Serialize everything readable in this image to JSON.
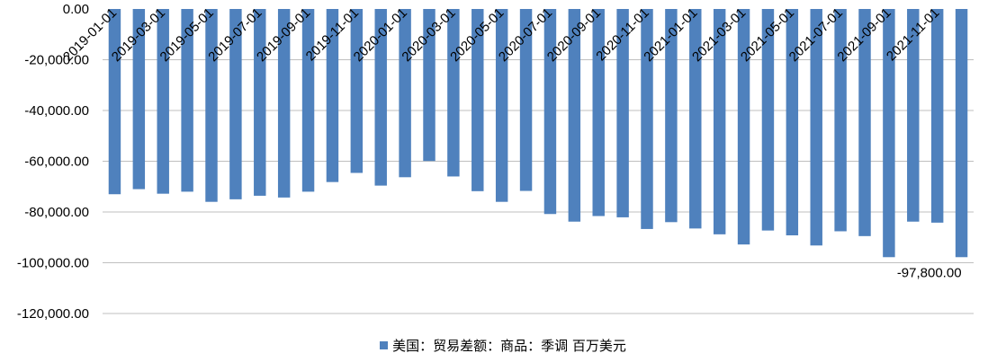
{
  "chart_data": {
    "type": "bar",
    "title": "",
    "xlabel": "",
    "ylabel": "",
    "ylim": [
      -120000,
      0
    ],
    "y_ticks": [
      0,
      -20000,
      -40000,
      -60000,
      -80000,
      -100000,
      -120000
    ],
    "y_tick_labels": [
      "0.00",
      "-20,000.00",
      "-40,000.00",
      "-60,000.00",
      "-80,000.00",
      "-100,000.00",
      "-120,000.00"
    ],
    "grid": true,
    "legend_position": "bottom",
    "color": "#4f81bd",
    "categories": [
      "2019-01-01",
      "2019-02-01",
      "2019-03-01",
      "2019-04-01",
      "2019-05-01",
      "2019-06-01",
      "2019-07-01",
      "2019-08-01",
      "2019-09-01",
      "2019-10-01",
      "2019-11-01",
      "2019-12-01",
      "2020-01-01",
      "2020-02-01",
      "2020-03-01",
      "2020-04-01",
      "2020-05-01",
      "2020-06-01",
      "2020-07-01",
      "2020-08-01",
      "2020-09-01",
      "2020-10-01",
      "2020-11-01",
      "2020-12-01",
      "2021-01-01",
      "2021-02-01",
      "2021-03-01",
      "2021-04-01",
      "2021-05-01",
      "2021-06-01",
      "2021-07-01",
      "2021-08-01",
      "2021-09-01",
      "2021-10-01",
      "2021-11-01",
      "2021-12-01"
    ],
    "x_tick_labels": [
      "2019-01-01",
      "2019-03-01",
      "2019-05-01",
      "2019-07-01",
      "2019-09-01",
      "2019-11-01",
      "2020-01-01",
      "2020-03-01",
      "2020-05-01",
      "2020-07-01",
      "2020-09-01",
      "2020-11-01",
      "2021-01-01",
      "2021-03-01",
      "2021-05-01",
      "2021-07-01",
      "2021-09-01",
      "2021-11-01"
    ],
    "series": [
      {
        "name": "美国：贸易差额：商品：季调 百万美元",
        "values": [
          -73000,
          -71000,
          -72800,
          -72000,
          -76000,
          -75000,
          -73600,
          -74300,
          -72000,
          -68200,
          -64600,
          -69600,
          -66300,
          -59900,
          -66000,
          -71800,
          -76000,
          -71700,
          -80800,
          -83800,
          -81600,
          -82100,
          -86700,
          -84000,
          -86500,
          -88800,
          -92800,
          -87300,
          -89200,
          -93200,
          -87600,
          -89500,
          -97800,
          -83800,
          -84200,
          -97800
        ]
      }
    ],
    "data_labels": [
      {
        "index": 35,
        "text": "-97,800.00"
      }
    ]
  }
}
